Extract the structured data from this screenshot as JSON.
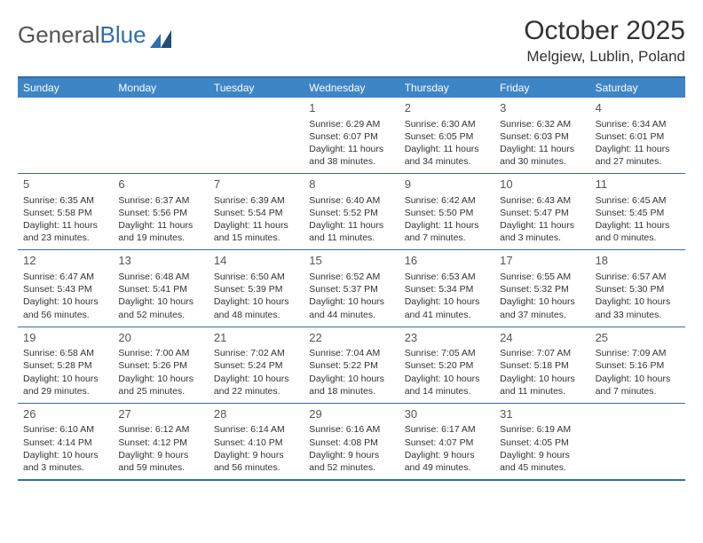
{
  "logo": {
    "text1": "General",
    "text2": "Blue"
  },
  "title": "October 2025",
  "location": "Melgiew, Lublin, Poland",
  "colors": {
    "header_bg": "#3e85c6",
    "header_text": "#ffffff",
    "border": "#2f6fab",
    "text": "#333333",
    "muted": "#555555",
    "background": "#ffffff"
  },
  "dayNames": [
    "Sunday",
    "Monday",
    "Tuesday",
    "Wednesday",
    "Thursday",
    "Friday",
    "Saturday"
  ],
  "weeks": [
    [
      {
        "day": "",
        "sunrise": "",
        "sunset": "",
        "daylight": ""
      },
      {
        "day": "",
        "sunrise": "",
        "sunset": "",
        "daylight": ""
      },
      {
        "day": "",
        "sunrise": "",
        "sunset": "",
        "daylight": ""
      },
      {
        "day": "1",
        "sunrise": "Sunrise: 6:29 AM",
        "sunset": "Sunset: 6:07 PM",
        "daylight": "Daylight: 11 hours and 38 minutes."
      },
      {
        "day": "2",
        "sunrise": "Sunrise: 6:30 AM",
        "sunset": "Sunset: 6:05 PM",
        "daylight": "Daylight: 11 hours and 34 minutes."
      },
      {
        "day": "3",
        "sunrise": "Sunrise: 6:32 AM",
        "sunset": "Sunset: 6:03 PM",
        "daylight": "Daylight: 11 hours and 30 minutes."
      },
      {
        "day": "4",
        "sunrise": "Sunrise: 6:34 AM",
        "sunset": "Sunset: 6:01 PM",
        "daylight": "Daylight: 11 hours and 27 minutes."
      }
    ],
    [
      {
        "day": "5",
        "sunrise": "Sunrise: 6:35 AM",
        "sunset": "Sunset: 5:58 PM",
        "daylight": "Daylight: 11 hours and 23 minutes."
      },
      {
        "day": "6",
        "sunrise": "Sunrise: 6:37 AM",
        "sunset": "Sunset: 5:56 PM",
        "daylight": "Daylight: 11 hours and 19 minutes."
      },
      {
        "day": "7",
        "sunrise": "Sunrise: 6:39 AM",
        "sunset": "Sunset: 5:54 PM",
        "daylight": "Daylight: 11 hours and 15 minutes."
      },
      {
        "day": "8",
        "sunrise": "Sunrise: 6:40 AM",
        "sunset": "Sunset: 5:52 PM",
        "daylight": "Daylight: 11 hours and 11 minutes."
      },
      {
        "day": "9",
        "sunrise": "Sunrise: 6:42 AM",
        "sunset": "Sunset: 5:50 PM",
        "daylight": "Daylight: 11 hours and 7 minutes."
      },
      {
        "day": "10",
        "sunrise": "Sunrise: 6:43 AM",
        "sunset": "Sunset: 5:47 PM",
        "daylight": "Daylight: 11 hours and 3 minutes."
      },
      {
        "day": "11",
        "sunrise": "Sunrise: 6:45 AM",
        "sunset": "Sunset: 5:45 PM",
        "daylight": "Daylight: 11 hours and 0 minutes."
      }
    ],
    [
      {
        "day": "12",
        "sunrise": "Sunrise: 6:47 AM",
        "sunset": "Sunset: 5:43 PM",
        "daylight": "Daylight: 10 hours and 56 minutes."
      },
      {
        "day": "13",
        "sunrise": "Sunrise: 6:48 AM",
        "sunset": "Sunset: 5:41 PM",
        "daylight": "Daylight: 10 hours and 52 minutes."
      },
      {
        "day": "14",
        "sunrise": "Sunrise: 6:50 AM",
        "sunset": "Sunset: 5:39 PM",
        "daylight": "Daylight: 10 hours and 48 minutes."
      },
      {
        "day": "15",
        "sunrise": "Sunrise: 6:52 AM",
        "sunset": "Sunset: 5:37 PM",
        "daylight": "Daylight: 10 hours and 44 minutes."
      },
      {
        "day": "16",
        "sunrise": "Sunrise: 6:53 AM",
        "sunset": "Sunset: 5:34 PM",
        "daylight": "Daylight: 10 hours and 41 minutes."
      },
      {
        "day": "17",
        "sunrise": "Sunrise: 6:55 AM",
        "sunset": "Sunset: 5:32 PM",
        "daylight": "Daylight: 10 hours and 37 minutes."
      },
      {
        "day": "18",
        "sunrise": "Sunrise: 6:57 AM",
        "sunset": "Sunset: 5:30 PM",
        "daylight": "Daylight: 10 hours and 33 minutes."
      }
    ],
    [
      {
        "day": "19",
        "sunrise": "Sunrise: 6:58 AM",
        "sunset": "Sunset: 5:28 PM",
        "daylight": "Daylight: 10 hours and 29 minutes."
      },
      {
        "day": "20",
        "sunrise": "Sunrise: 7:00 AM",
        "sunset": "Sunset: 5:26 PM",
        "daylight": "Daylight: 10 hours and 25 minutes."
      },
      {
        "day": "21",
        "sunrise": "Sunrise: 7:02 AM",
        "sunset": "Sunset: 5:24 PM",
        "daylight": "Daylight: 10 hours and 22 minutes."
      },
      {
        "day": "22",
        "sunrise": "Sunrise: 7:04 AM",
        "sunset": "Sunset: 5:22 PM",
        "daylight": "Daylight: 10 hours and 18 minutes."
      },
      {
        "day": "23",
        "sunrise": "Sunrise: 7:05 AM",
        "sunset": "Sunset: 5:20 PM",
        "daylight": "Daylight: 10 hours and 14 minutes."
      },
      {
        "day": "24",
        "sunrise": "Sunrise: 7:07 AM",
        "sunset": "Sunset: 5:18 PM",
        "daylight": "Daylight: 10 hours and 11 minutes."
      },
      {
        "day": "25",
        "sunrise": "Sunrise: 7:09 AM",
        "sunset": "Sunset: 5:16 PM",
        "daylight": "Daylight: 10 hours and 7 minutes."
      }
    ],
    [
      {
        "day": "26",
        "sunrise": "Sunrise: 6:10 AM",
        "sunset": "Sunset: 4:14 PM",
        "daylight": "Daylight: 10 hours and 3 minutes."
      },
      {
        "day": "27",
        "sunrise": "Sunrise: 6:12 AM",
        "sunset": "Sunset: 4:12 PM",
        "daylight": "Daylight: 9 hours and 59 minutes."
      },
      {
        "day": "28",
        "sunrise": "Sunrise: 6:14 AM",
        "sunset": "Sunset: 4:10 PM",
        "daylight": "Daylight: 9 hours and 56 minutes."
      },
      {
        "day": "29",
        "sunrise": "Sunrise: 6:16 AM",
        "sunset": "Sunset: 4:08 PM",
        "daylight": "Daylight: 9 hours and 52 minutes."
      },
      {
        "day": "30",
        "sunrise": "Sunrise: 6:17 AM",
        "sunset": "Sunset: 4:07 PM",
        "daylight": "Daylight: 9 hours and 49 minutes."
      },
      {
        "day": "31",
        "sunrise": "Sunrise: 6:19 AM",
        "sunset": "Sunset: 4:05 PM",
        "daylight": "Daylight: 9 hours and 45 minutes."
      },
      {
        "day": "",
        "sunrise": "",
        "sunset": "",
        "daylight": ""
      }
    ]
  ]
}
